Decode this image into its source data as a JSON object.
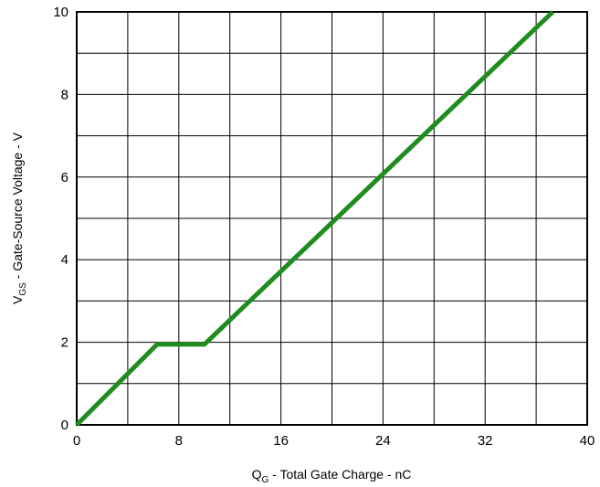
{
  "chart_data": {
    "type": "line",
    "title": "",
    "xlabel": {
      "main": "Q",
      "sub": "G",
      "rest": " - Total Gate Charge - nC"
    },
    "ylabel": {
      "main": "V",
      "sub": "GS",
      "rest": " - Gate-Source Voltage - V"
    },
    "xlim": [
      0,
      40
    ],
    "ylim": [
      0,
      10
    ],
    "xticks": [
      0,
      8,
      16,
      24,
      32,
      40
    ],
    "yticks": [
      0,
      2,
      4,
      6,
      8,
      10
    ],
    "x_minor_step": 4,
    "y_minor_step": 1,
    "grid": true,
    "series": [
      {
        "color": "#1e8c1e",
        "x": [
          0,
          6.3,
          10,
          37.3
        ],
        "y": [
          0,
          1.95,
          1.95,
          10
        ]
      }
    ]
  }
}
